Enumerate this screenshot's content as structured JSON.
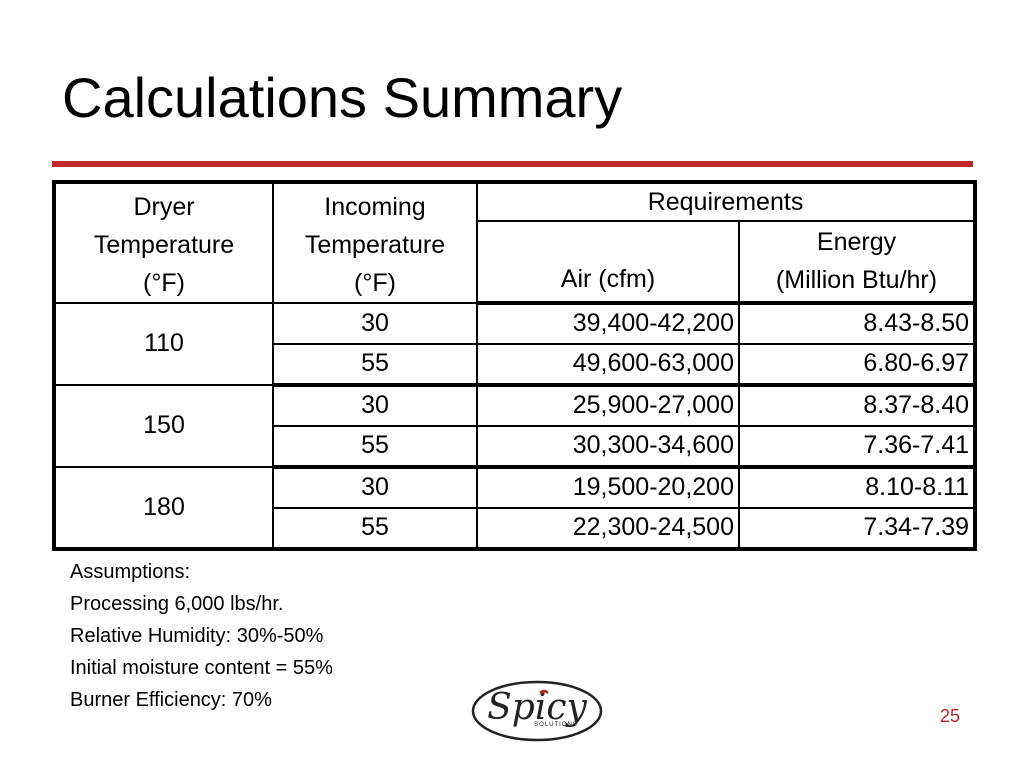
{
  "slide": {
    "title": "Calculations Summary",
    "page_number": "25",
    "accent_color": "#c0282b"
  },
  "table": {
    "headers": {
      "dryer": [
        "Dryer",
        "Temperature",
        "(°F)"
      ],
      "incoming": [
        "Incoming",
        "Temperature",
        "(°F)"
      ],
      "requirements": "Requirements",
      "air": "Air (cfm)",
      "energy": [
        "Energy",
        "(Million Btu/hr)"
      ]
    },
    "groups": [
      {
        "dryer_temp": "110",
        "rows": [
          {
            "incoming": "30",
            "air": "39,400-42,200",
            "energy": "8.43-8.50"
          },
          {
            "incoming": "55",
            "air": "49,600-63,000",
            "energy": "6.80-6.97"
          }
        ]
      },
      {
        "dryer_temp": "150",
        "rows": [
          {
            "incoming": "30",
            "air": "25,900-27,000",
            "energy": "8.37-8.40"
          },
          {
            "incoming": "55",
            "air": "30,300-34,600",
            "energy": "7.36-7.41"
          }
        ]
      },
      {
        "dryer_temp": "180",
        "rows": [
          {
            "incoming": "30",
            "air": "19,500-20,200",
            "energy": "8.10-8.11"
          },
          {
            "incoming": "55",
            "air": "22,300-24,500",
            "energy": "7.34-7.39"
          }
        ]
      }
    ]
  },
  "assumptions": [
    "Assumptions:",
    "Processing 6,000 lbs/hr.",
    "Relative Humidity: 30%-50%",
    "Initial moisture content = 55%",
    "Burner Efficiency: 70%"
  ],
  "logo": {
    "text": "Spicy",
    "subtext": "SOLUTIONS"
  }
}
